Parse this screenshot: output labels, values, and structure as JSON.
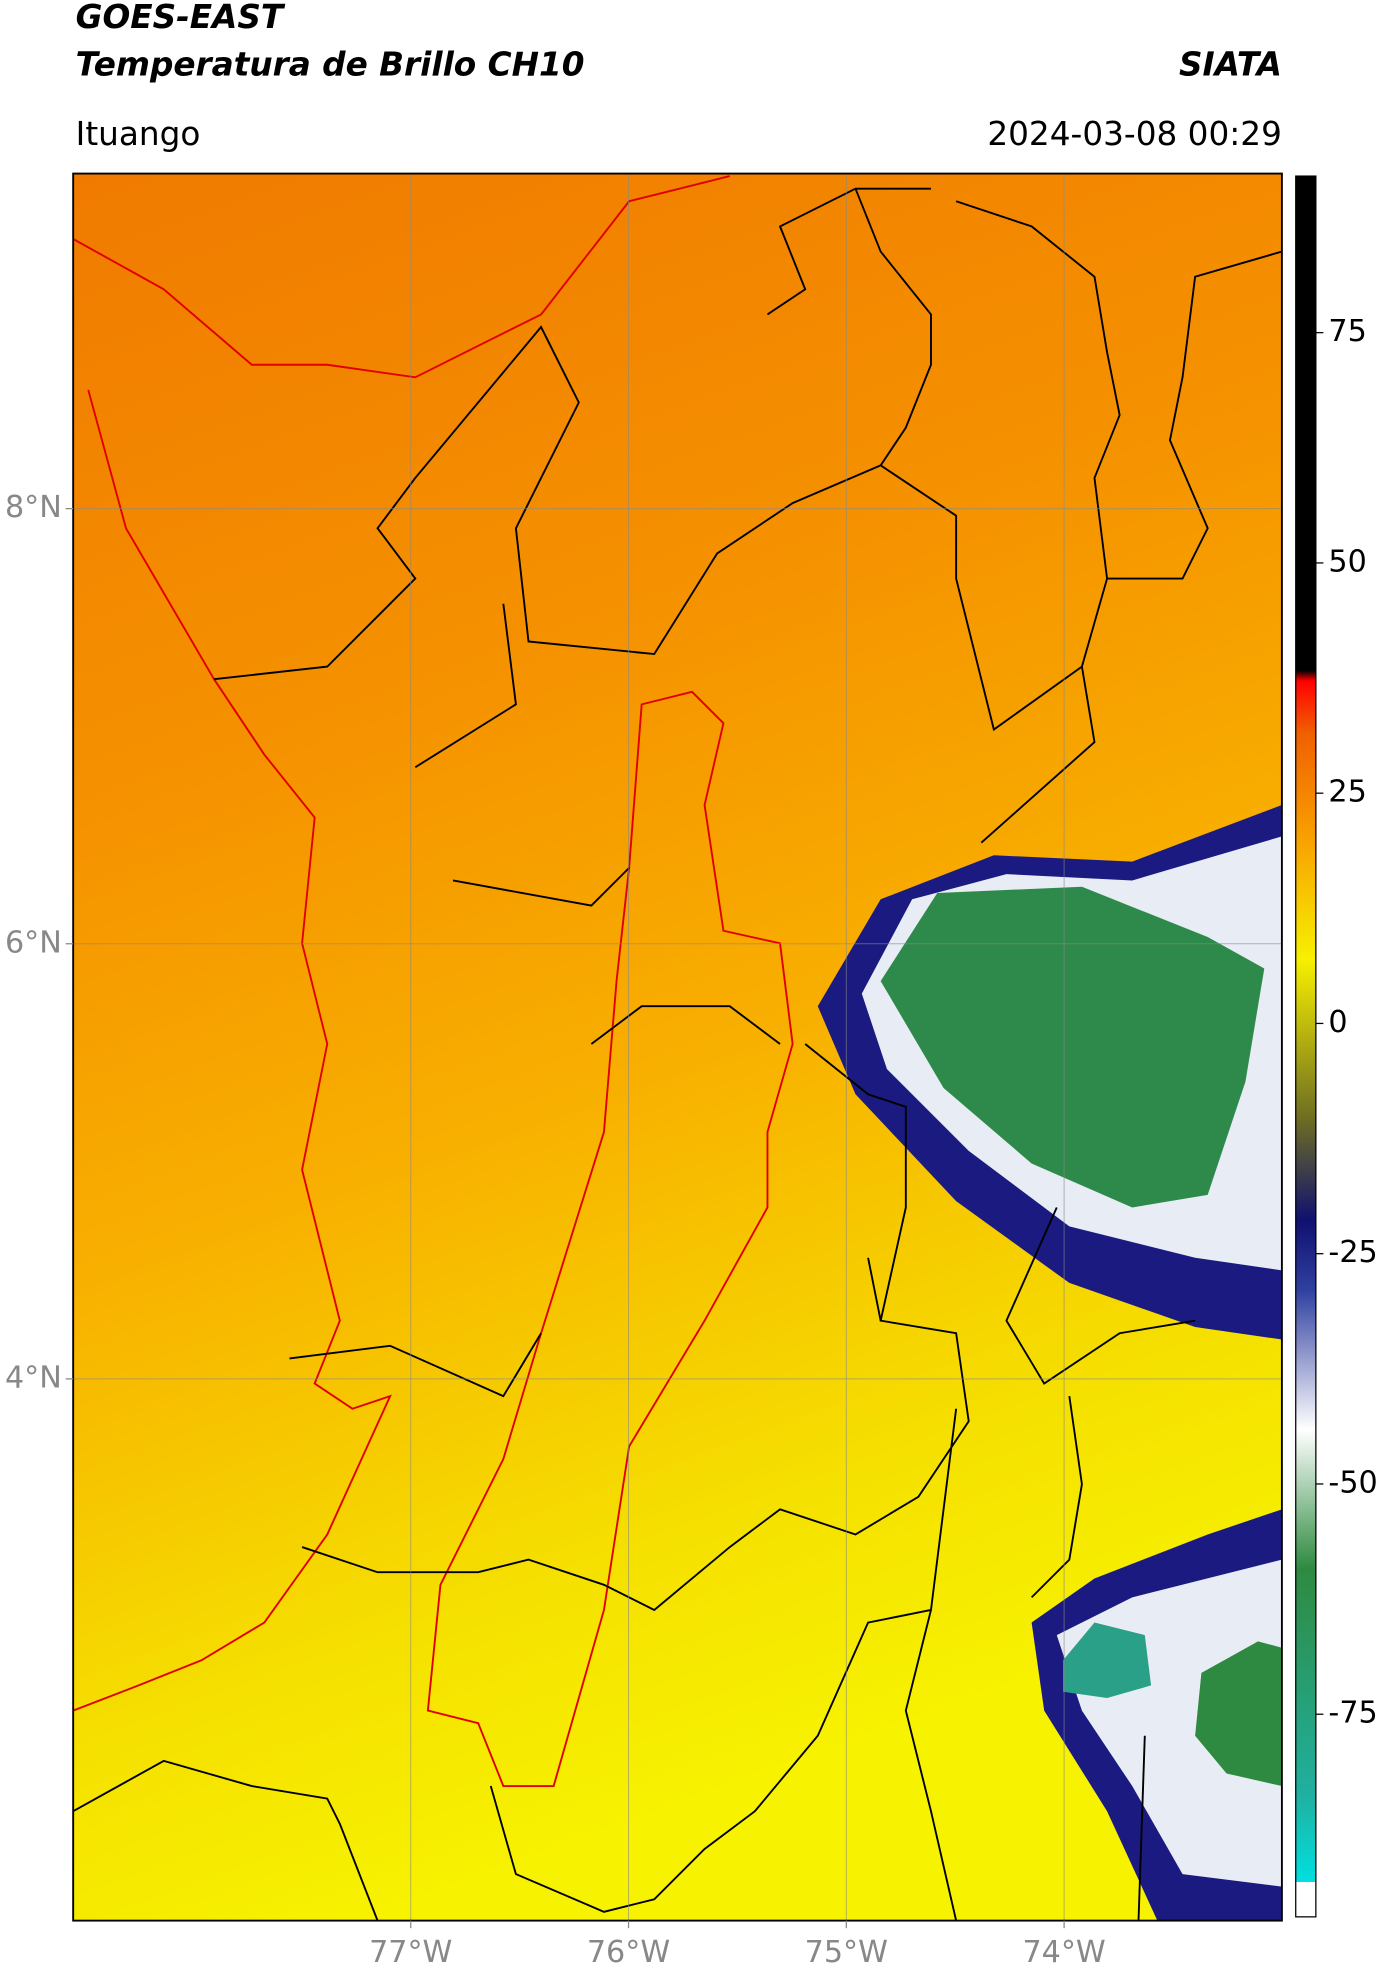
{
  "header": {
    "title": "GOES-EAST",
    "subtitle": "Temperatura de Brillo CH10",
    "agency": "SIATA",
    "region": "Ituango",
    "datetime": "2024-03-08 00:29"
  },
  "map": {
    "xlim": [
      -78.55,
      -73.0
    ],
    "ylim": [
      1.51,
      9.54
    ],
    "xticks": [
      {
        "value": -77,
        "label": "77°W"
      },
      {
        "value": -76,
        "label": "76°W"
      },
      {
        "value": -75,
        "label": "75°W"
      },
      {
        "value": -74,
        "label": "74°W"
      }
    ],
    "yticks": [
      {
        "value": 4,
        "label": "4°N"
      },
      {
        "value": 6,
        "label": "6°N"
      },
      {
        "value": 8,
        "label": "8°N"
      }
    ],
    "grid": true
  },
  "colorbar": {
    "lim": [
      -97,
      92
    ],
    "ticks": [
      -75,
      -50,
      -25,
      0,
      25,
      50,
      75
    ]
  }
}
